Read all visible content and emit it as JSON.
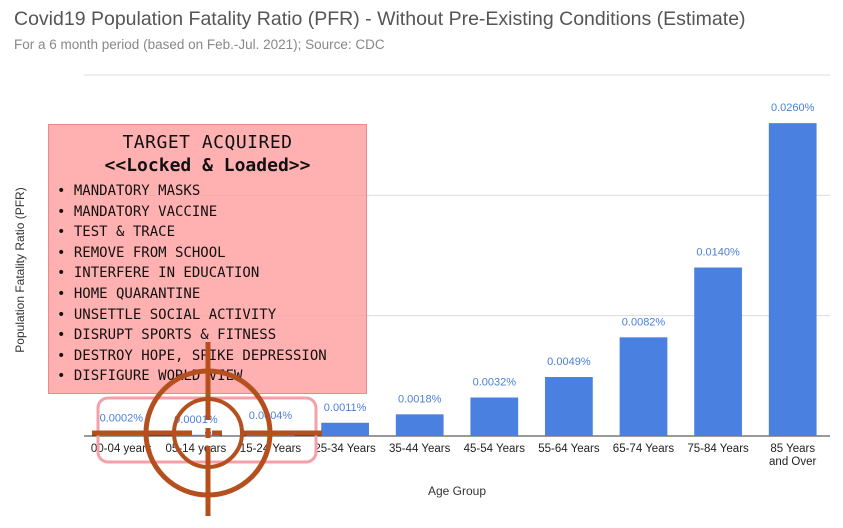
{
  "chart_data": {
    "type": "bar",
    "title": "Covid19 Population Fatality Ratio (PFR) - Without Pre-Existing Conditions (Estimate)",
    "subtitle": "For a 6 month period (based on Feb.-Jul. 2021); Source: CDC",
    "xlabel": "Age Group",
    "ylabel": "Population Fatality Ratio (PFR)",
    "categories": [
      "00-04 years",
      "05-14 years",
      "15-24 Years",
      "25-34 Years",
      "35-44 Years",
      "45-54 Years",
      "55-64 Years",
      "65-74 Years",
      "75-84 Years",
      "85 Years and Over"
    ],
    "values": [
      0.0002,
      0.0001,
      0.0004,
      0.0011,
      0.0018,
      0.0032,
      0.0049,
      0.0082,
      0.014,
      0.026
    ],
    "data_labels": [
      "0.0002%",
      "0.0001%",
      "0.0004%",
      "0.0011%",
      "0.0018%",
      "0.0032%",
      "0.0049%",
      "0.0082%",
      "0.0140%",
      "0.0260%"
    ],
    "value_unit": "%",
    "ylim": [
      0,
      0.03
    ],
    "grid": true,
    "bar_color": "#4a80e0"
  },
  "overlay": {
    "heading": "TARGET ACQUIRED",
    "subheading": "<<Locked & Loaded>>",
    "items": [
      "MANDATORY MASKS",
      "MANDATORY VACCINE",
      "TEST & TRACE",
      "REMOVE FROM SCHOOL",
      "INTERFERE IN EDUCATION",
      "HOME QUARANTINE",
      "UNSETTLE SOCIAL ACTIVITY",
      "DISRUPT SPORTS & FITNESS",
      "DESTROY HOPE, SPIKE DEPRESSION",
      "DISFIGURE WORLD VIEW"
    ],
    "highlight_color": "#f4a0a8",
    "crosshair_color": "#b5501e"
  }
}
